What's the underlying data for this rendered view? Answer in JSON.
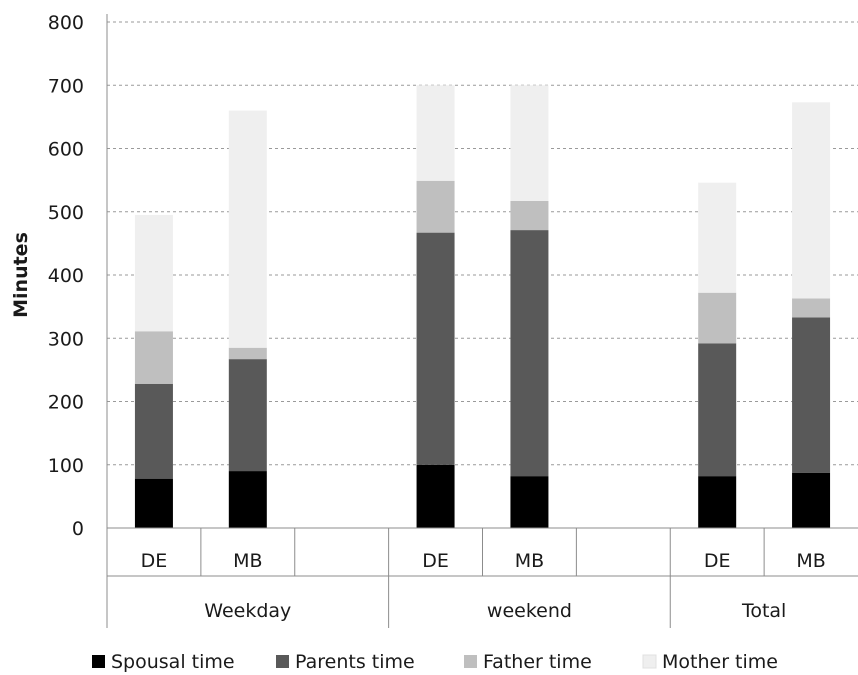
{
  "chart_data": {
    "type": "bar",
    "stacked": true,
    "title": "",
    "xlabel": "",
    "ylabel": "Minutes",
    "ylim": [
      0,
      800
    ],
    "yticks": [
      0,
      100,
      200,
      300,
      400,
      500,
      600,
      700,
      800
    ],
    "grid": "horizontal dashed",
    "legend_position": "bottom",
    "groups": [
      {
        "label": "Weekday",
        "categories": [
          "DE",
          "MB"
        ]
      },
      {
        "label": "weekend",
        "categories": [
          "DE",
          "MB"
        ]
      },
      {
        "label": "Total",
        "categories": [
          "DE",
          "MB"
        ]
      }
    ],
    "series": [
      {
        "name": "Spousal time",
        "color": "#000000",
        "values": [
          78,
          90,
          100,
          82,
          82,
          87
        ]
      },
      {
        "name": "Parents time",
        "color": "#595959",
        "values": [
          150,
          177,
          367,
          389,
          210,
          246
        ]
      },
      {
        "name": "Father time",
        "color": "#bfbfbf",
        "values": [
          83,
          18,
          82,
          46,
          80,
          30
        ]
      },
      {
        "name": "Mother time",
        "color": "#efefef",
        "values": [
          184,
          375,
          151,
          183,
          174,
          310
        ]
      }
    ]
  }
}
